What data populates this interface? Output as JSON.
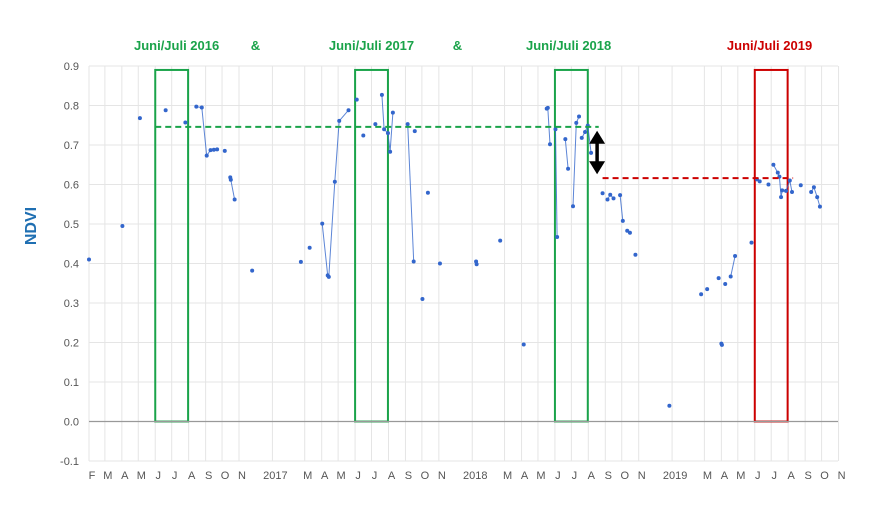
{
  "chart_data": {
    "type": "scatter",
    "ylabel": "NDVI",
    "ylim": [
      -0.1,
      0.9
    ],
    "yticks": [
      "-0.1",
      "0.0",
      "0.1",
      "0.2",
      "0.3",
      "0.4",
      "0.5",
      "0.6",
      "0.7",
      "0.8",
      "0.9"
    ],
    "x_start": "2016-02-01",
    "x_end": "2019-10-31",
    "xticks": [
      {
        "label": "F",
        "date": "2016-02-01"
      },
      {
        "label": "M",
        "date": "2016-03-01"
      },
      {
        "label": "A",
        "date": "2016-04-01"
      },
      {
        "label": "M",
        "date": "2016-05-01"
      },
      {
        "label": "J",
        "date": "2016-06-01"
      },
      {
        "label": "J",
        "date": "2016-07-01"
      },
      {
        "label": "A",
        "date": "2016-08-01"
      },
      {
        "label": "S",
        "date": "2016-09-01"
      },
      {
        "label": "O",
        "date": "2016-10-01"
      },
      {
        "label": "N",
        "date": "2016-11-01"
      },
      {
        "label": "2017",
        "date": "2017-01-01"
      },
      {
        "label": "M",
        "date": "2017-03-01"
      },
      {
        "label": "A",
        "date": "2017-04-01"
      },
      {
        "label": "M",
        "date": "2017-05-01"
      },
      {
        "label": "J",
        "date": "2017-06-01"
      },
      {
        "label": "J",
        "date": "2017-07-01"
      },
      {
        "label": "A",
        "date": "2017-08-01"
      },
      {
        "label": "S",
        "date": "2017-09-01"
      },
      {
        "label": "O",
        "date": "2017-10-01"
      },
      {
        "label": "N",
        "date": "2017-11-01"
      },
      {
        "label": "2018",
        "date": "2018-01-01"
      },
      {
        "label": "M",
        "date": "2018-03-01"
      },
      {
        "label": "A",
        "date": "2018-04-01"
      },
      {
        "label": "M",
        "date": "2018-05-01"
      },
      {
        "label": "J",
        "date": "2018-06-01"
      },
      {
        "label": "J",
        "date": "2018-07-01"
      },
      {
        "label": "A",
        "date": "2018-08-01"
      },
      {
        "label": "S",
        "date": "2018-09-01"
      },
      {
        "label": "O",
        "date": "2018-10-01"
      },
      {
        "label": "N",
        "date": "2018-11-01"
      },
      {
        "label": "2019",
        "date": "2019-01-01"
      },
      {
        "label": "M",
        "date": "2019-03-01"
      },
      {
        "label": "A",
        "date": "2019-04-01"
      },
      {
        "label": "M",
        "date": "2019-05-01"
      },
      {
        "label": "J",
        "date": "2019-06-01"
      },
      {
        "label": "J",
        "date": "2019-07-01"
      },
      {
        "label": "A",
        "date": "2019-08-01"
      },
      {
        "label": "S",
        "date": "2019-09-01"
      },
      {
        "label": "O",
        "date": "2019-10-01"
      },
      {
        "label": "N",
        "date": "2019-11-01"
      }
    ],
    "grid": true,
    "colors": {
      "series": "#3366cc",
      "green": "#1aa34a",
      "red": "#cc0000",
      "grid": "#e5e5e5",
      "zero_line": "#999999"
    },
    "series": [
      {
        "segments": [
          [
            [
              "2016-02-01",
              0.41
            ]
          ],
          [
            [
              "2016-04-02",
              0.495
            ]
          ],
          [
            [
              "2016-05-04",
              0.768
            ]
          ],
          [
            [
              "2016-06-20",
              0.788
            ]
          ],
          [
            [
              "2016-07-26",
              0.757
            ]
          ],
          [
            [
              "2016-08-15",
              0.797
            ],
            [
              "2016-08-25",
              0.795
            ],
            [
              "2016-09-03",
              0.673
            ],
            [
              "2016-09-10",
              0.687
            ],
            [
              "2016-09-16",
              0.688
            ],
            [
              "2016-09-22",
              0.689
            ]
          ],
          [
            [
              "2016-10-06",
              0.685
            ]
          ],
          [
            [
              "2016-10-16",
              0.618
            ],
            [
              "2016-10-17",
              0.612
            ],
            [
              "2016-10-24",
              0.562
            ]
          ],
          [
            [
              "2016-11-25",
              0.382
            ]
          ],
          [
            [
              "2017-02-22",
              0.404
            ]
          ],
          [
            [
              "2017-03-10",
              0.44
            ]
          ],
          [
            [
              "2017-04-02",
              0.501
            ],
            [
              "2017-04-12",
              0.37
            ],
            [
              "2017-04-14",
              0.366
            ],
            [
              "2017-04-25",
              0.607
            ],
            [
              "2017-05-03",
              0.761
            ],
            [
              "2017-05-20",
              0.788
            ]
          ],
          [
            [
              "2017-06-04",
              0.815
            ]
          ],
          [
            [
              "2017-06-16",
              0.724
            ]
          ],
          [
            [
              "2017-07-08",
              0.753
            ]
          ],
          [
            [
              "2017-07-20",
              0.827
            ],
            [
              "2017-07-24",
              0.74
            ],
            [
              "2017-07-31",
              0.73
            ],
            [
              "2017-08-04",
              0.683
            ],
            [
              "2017-08-09",
              0.782
            ]
          ],
          [
            [
              "2017-09-05",
              0.753
            ],
            [
              "2017-09-16",
              0.405
            ]
          ],
          [
            [
              "2017-09-18",
              0.735
            ]
          ],
          [
            [
              "2017-10-02",
              0.31
            ]
          ],
          [
            [
              "2017-10-12",
              0.579
            ]
          ],
          [
            [
              "2017-11-03",
              0.4
            ]
          ],
          [
            [
              "2018-01-08",
              0.405
            ],
            [
              "2018-01-09",
              0.398
            ]
          ],
          [
            [
              "2018-02-21",
              0.458
            ]
          ],
          [
            [
              "2018-04-05",
              0.195
            ]
          ],
          [
            [
              "2018-05-17",
              0.792
            ],
            [
              "2018-05-19",
              0.794
            ],
            [
              "2018-05-23",
              0.702
            ]
          ],
          [
            [
              "2018-06-02",
              0.74
            ],
            [
              "2018-06-05",
              0.467
            ]
          ],
          [
            [
              "2018-06-20",
              0.715
            ],
            [
              "2018-06-25",
              0.64
            ]
          ],
          [
            [
              "2018-07-04",
              0.545
            ],
            [
              "2018-07-10",
              0.756
            ],
            [
              "2018-07-15",
              0.772
            ]
          ],
          [
            [
              "2018-07-20",
              0.718
            ],
            [
              "2018-07-26",
              0.733
            ],
            [
              "2018-07-31",
              0.749
            ],
            [
              "2018-08-06",
              0.68
            ]
          ],
          [
            [
              "2018-08-27",
              0.578
            ]
          ],
          [
            [
              "2018-09-05",
              0.562
            ],
            [
              "2018-09-10",
              0.574
            ],
            [
              "2018-09-16",
              0.565
            ]
          ],
          [
            [
              "2018-09-28",
              0.573
            ],
            [
              "2018-10-03",
              0.508
            ]
          ],
          [
            [
              "2018-10-11",
              0.483
            ],
            [
              "2018-10-16",
              0.478
            ]
          ],
          [
            [
              "2018-10-26",
              0.422
            ]
          ],
          [
            [
              "2018-12-27",
              0.04
            ]
          ],
          [
            [
              "2019-02-23",
              0.322
            ]
          ],
          [
            [
              "2019-03-06",
              0.335
            ]
          ],
          [
            [
              "2019-03-27",
              0.363
            ]
          ],
          [
            [
              "2019-04-01",
              0.197
            ],
            [
              "2019-04-02",
              0.194
            ]
          ],
          [
            [
              "2019-04-08",
              0.348
            ]
          ],
          [
            [
              "2019-04-18",
              0.367
            ],
            [
              "2019-04-26",
              0.419
            ]
          ],
          [
            [
              "2019-05-26",
              0.453
            ]
          ],
          [
            [
              "2019-06-05",
              0.613
            ],
            [
              "2019-06-10",
              0.608
            ]
          ],
          [
            [
              "2019-06-26",
              0.6
            ]
          ],
          [
            [
              "2019-07-05",
              0.65
            ],
            [
              "2019-07-13",
              0.63
            ],
            [
              "2019-07-16",
              0.62
            ],
            [
              "2019-07-19",
              0.568
            ],
            [
              "2019-07-21",
              0.585
            ],
            [
              "2019-07-28",
              0.584
            ],
            [
              "2019-08-04",
              0.61
            ],
            [
              "2019-08-08",
              0.581
            ]
          ],
          [
            [
              "2019-08-24",
              0.598
            ]
          ],
          [
            [
              "2019-09-12",
              0.581
            ],
            [
              "2019-09-17",
              0.593
            ],
            [
              "2019-09-23",
              0.568
            ],
            [
              "2019-09-28",
              0.544
            ]
          ]
        ]
      }
    ],
    "annotations": {
      "labels": [
        {
          "id": "label-2016",
          "text": "Juni/Juli 2016",
          "color": "green",
          "pos": [
            "2016-07-10",
            0.9
          ]
        },
        {
          "id": "amp-1",
          "text": "&",
          "color": "green",
          "pos": [
            "2016-12-01",
            0.9
          ]
        },
        {
          "id": "label-2017",
          "text": "Juni/Juli 2017",
          "color": "green",
          "pos": [
            "2017-07-01",
            0.9
          ]
        },
        {
          "id": "amp-2",
          "text": "&",
          "color": "green",
          "pos": [
            "2017-12-05",
            0.9
          ]
        },
        {
          "id": "label-2018",
          "text": "Juni/Juli 2018",
          "color": "green",
          "pos": [
            "2018-06-26",
            0.9
          ]
        },
        {
          "id": "label-2019",
          "text": "Juni/Juli 2019",
          "color": "red",
          "pos": [
            "2019-06-28",
            0.9
          ]
        }
      ],
      "boxes": [
        {
          "id": "box-2016",
          "color": "green",
          "from": "2016-06-01",
          "to": "2016-07-31",
          "ymin": 0.0,
          "ymax": 0.89
        },
        {
          "id": "box-2017",
          "color": "green",
          "from": "2017-06-01",
          "to": "2017-07-31",
          "ymin": 0.0,
          "ymax": 0.89
        },
        {
          "id": "box-2018",
          "color": "green",
          "from": "2018-06-01",
          "to": "2018-07-31",
          "ymin": 0.0,
          "ymax": 0.89
        },
        {
          "id": "box-2019",
          "color": "red",
          "from": "2019-06-01",
          "to": "2019-07-31",
          "ymin": 0.0,
          "ymax": 0.89
        }
      ],
      "level_lines": [
        {
          "id": "level-green",
          "color": "green",
          "y": 0.746,
          "from": "2016-06-01",
          "to": "2018-08-20"
        },
        {
          "id": "level-red",
          "color": "red",
          "y": 0.616,
          "from": "2018-08-27",
          "to": "2019-08-10"
        }
      ],
      "arrow": {
        "id": "difference-arrow",
        "x": "2018-08-17",
        "y_from": 0.736,
        "y_to": 0.626
      }
    }
  }
}
